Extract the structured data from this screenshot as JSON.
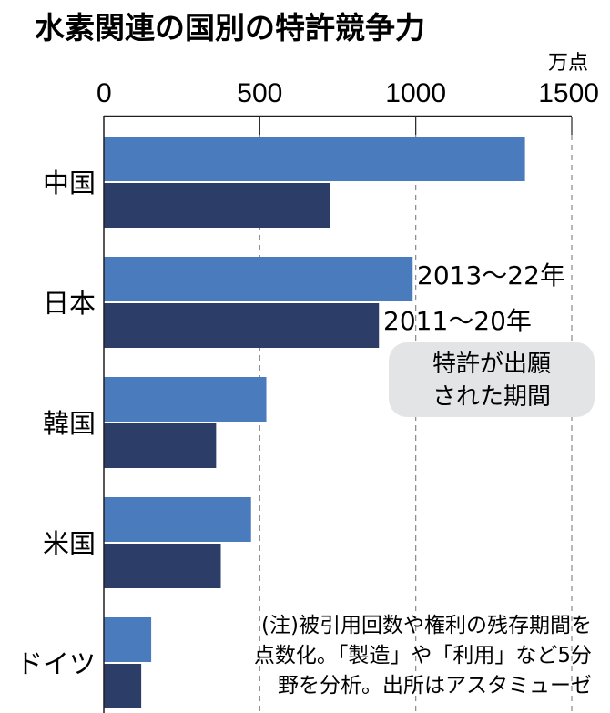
{
  "chart_data": {
    "type": "bar",
    "orientation": "horizontal",
    "title": "水素関連の国別の特許競争力",
    "unit": "万点",
    "xlim": [
      0,
      1500
    ],
    "xticks": [
      "0",
      "500",
      "1000",
      "1500"
    ],
    "grid": true,
    "categories": [
      "中国",
      "日本",
      "韓国",
      "米国",
      "ドイツ"
    ],
    "series": [
      {
        "name": "2013〜22年",
        "color": "#4a7bbd",
        "values": [
          1350,
          990,
          521,
          472,
          152
        ]
      },
      {
        "name": "2011〜20年",
        "color": "#2c3e68",
        "values": [
          724,
          882,
          360,
          375,
          120
        ]
      }
    ],
    "legend_box": [
      "特許が出願",
      "された期間"
    ],
    "note": [
      "(注)被引用回数や権利の残存期間を",
      "点数化。「製造」や「利用」など5分",
      "野を分析。出所はアスタミューゼ"
    ]
  }
}
